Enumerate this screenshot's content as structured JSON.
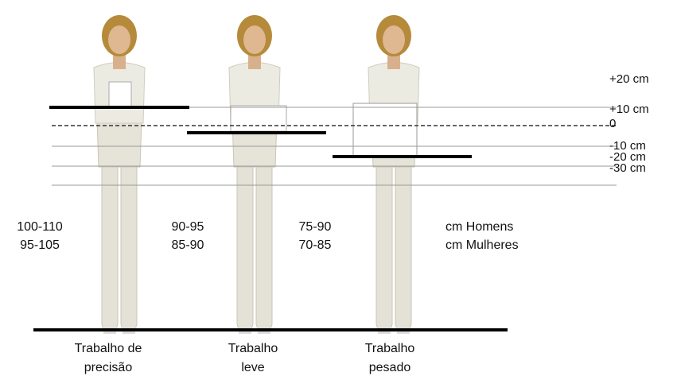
{
  "levels": [
    "+20 cm",
    "+10 cm",
    "0",
    "-10 cm",
    "-20 cm",
    "-30 cm"
  ],
  "columns": [
    {
      "men": "100-110",
      "women": "95-105",
      "label": [
        "Trabalho de",
        "precisão"
      ]
    },
    {
      "men": "90-95",
      "women": "85-90",
      "label": [
        "Trabalho",
        "leve"
      ]
    },
    {
      "men": "75-90",
      "women": "70-85",
      "label": [
        "Trabalho",
        "pesado"
      ]
    }
  ],
  "legend": {
    "men": "cm Homens",
    "women": "cm Mulheres"
  }
}
